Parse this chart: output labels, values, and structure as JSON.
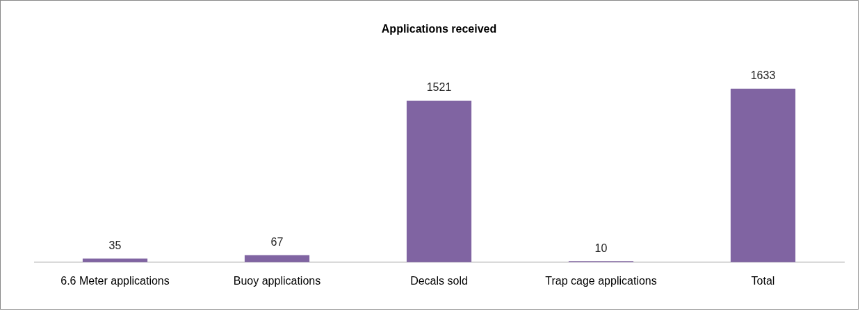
{
  "chart_data": {
    "type": "bar",
    "title": "Applications received",
    "categories": [
      "6.6 Meter applications",
      "Buoy applications",
      "Decals sold",
      "Trap cage applications",
      "Total"
    ],
    "values": [
      35,
      67,
      1521,
      10,
      1633
    ],
    "color": "#8064a2",
    "data_labels": true
  }
}
